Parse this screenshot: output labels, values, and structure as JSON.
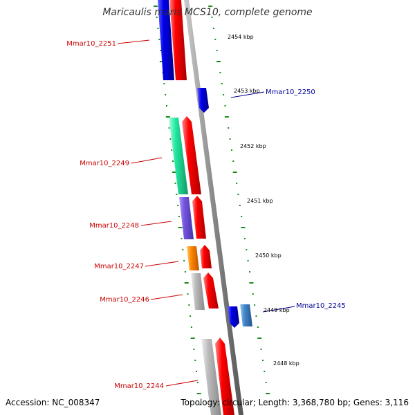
{
  "title": "Maricaulis maris MCS10, complete genome",
  "footer": {
    "accession": "Accession: NC_008347",
    "topology": "Topology: circular; Length: 3,368,780 bp; Genes: 3,116"
  },
  "scale": {
    "unit": "kbp",
    "ticks": [
      "2454 kbp",
      "2453 kbp",
      "2452 kbp",
      "2451 kbp",
      "2450 kbp",
      "2449 kbp",
      "2448 kbp"
    ]
  },
  "colors": {
    "forward_strand": "#ff0000",
    "reverse_strand": "#0000ee",
    "backbone": "#888888",
    "ticks": "#1a8a1a",
    "left_labels": "#cc0000",
    "right_labels": "#000099"
  },
  "genes_left": [
    {
      "label": "Mmar10_2251",
      "color": "#0000ee"
    },
    {
      "label": "Mmar10_2249",
      "color": "#22e8a0"
    },
    {
      "label": "Mmar10_2248",
      "color": "#7755dd"
    },
    {
      "label": "Mmar10_2247",
      "color": "#ff8800"
    },
    {
      "label": "Mmar10_2246",
      "color": "#bbbbbb"
    },
    {
      "label": "Mmar10_2244",
      "color": "#bbbbbb"
    }
  ],
  "genes_right": [
    {
      "label": "Mmar10_2250",
      "color": "#0000ee"
    },
    {
      "label": "Mmar10_2245",
      "color": "#0000ee",
      "cog_color": "#4488cc"
    }
  ]
}
